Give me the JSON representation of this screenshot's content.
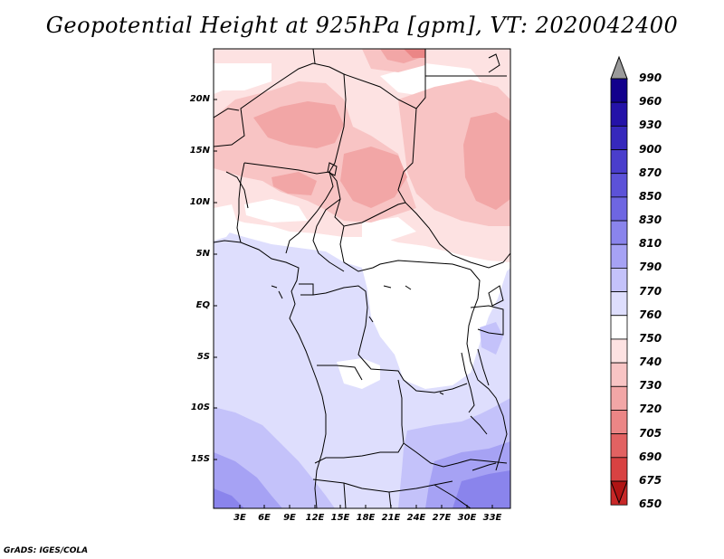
{
  "title": "Geopotential Height at 925hPa [gpm], VT: 2020042400",
  "y_tick_labels": [
    "20N",
    "15N",
    "10N",
    "5N",
    "EQ",
    "5S",
    "10S",
    "15S"
  ],
  "x_tick_labels": [
    "3E",
    "6E",
    "9E",
    "12E",
    "15E",
    "18E",
    "21E",
    "24E",
    "27E",
    "30E",
    "33E"
  ],
  "colorbar": {
    "levels": [
      "990",
      "960",
      "930",
      "900",
      "870",
      "850",
      "830",
      "810",
      "790",
      "770",
      "760",
      "750",
      "740",
      "730",
      "720",
      "705",
      "690",
      "675",
      "650"
    ],
    "colors": [
      "#12008c",
      "#2412a8",
      "#3628bc",
      "#4a3ecc",
      "#5c52d8",
      "#6e66e2",
      "#8a84ec",
      "#a6a2f4",
      "#c4c2fa",
      "#dedefd",
      "#ffffff",
      "#fde2e2",
      "#f8c4c4",
      "#f2a6a6",
      "#eb8686",
      "#e26262",
      "#d84242",
      "#c82828",
      "#b01414"
    ]
  },
  "credit": "GrADS: IGES/COLA"
}
